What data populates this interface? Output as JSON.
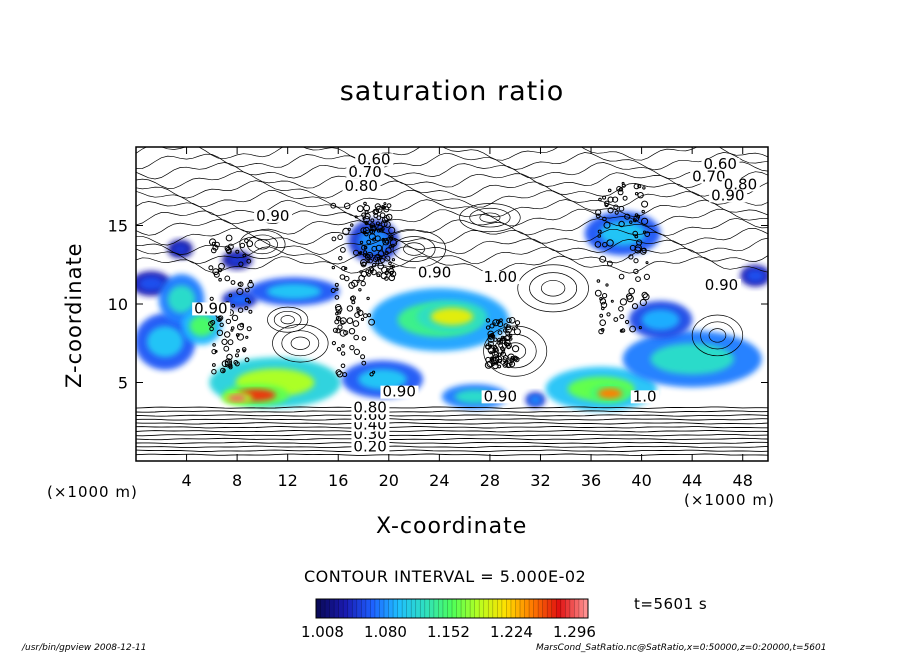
{
  "chart_data": {
    "type": "heatmap",
    "title": "saturation ratio",
    "xlabel": "X-coordinate",
    "ylabel": "Z-coordinate",
    "x_unit": "(×1000 m)",
    "y_unit": "(×1000 m)",
    "xlim": [
      0,
      50
    ],
    "ylim": [
      0,
      20
    ],
    "x_ticks": [
      4,
      8,
      12,
      16,
      20,
      24,
      28,
      32,
      36,
      40,
      44,
      48
    ],
    "y_ticks": [
      5,
      10,
      15
    ],
    "contour_interval": "CONTOUR INTERVAL = 5.000E-02",
    "contour_labels": [
      {
        "text": "0.60",
        "x": 17.5,
        "z": 18.9
      },
      {
        "text": "0.70",
        "x": 16.8,
        "z": 18.1
      },
      {
        "text": "0.80",
        "x": 16.5,
        "z": 17.2
      },
      {
        "text": "0.90",
        "x": 9.5,
        "z": 15.3
      },
      {
        "text": "0.90",
        "x": 22.3,
        "z": 11.7
      },
      {
        "text": "1.00",
        "x": 27.5,
        "z": 11.4
      },
      {
        "text": "0.90",
        "x": 4.6,
        "z": 9.4
      },
      {
        "text": "0.60",
        "x": 44.9,
        "z": 18.6
      },
      {
        "text": "0.70",
        "x": 44.0,
        "z": 17.8
      },
      {
        "text": "0.80",
        "x": 46.5,
        "z": 17.3
      },
      {
        "text": "0.90",
        "x": 45.5,
        "z": 16.6
      },
      {
        "text": "0.90",
        "x": 45.0,
        "z": 10.9
      },
      {
        "text": "0.90",
        "x": 19.5,
        "z": 4.1
      },
      {
        "text": "0.90",
        "x": 27.5,
        "z": 3.8
      },
      {
        "text": "1.0",
        "x": 39.3,
        "z": 3.8
      },
      {
        "text": "0.20",
        "x": 17.2,
        "z": 0.6
      },
      {
        "text": "0.30",
        "x": 17.2,
        "z": 1.4
      },
      {
        "text": "0.40",
        "x": 17.2,
        "z": 2.0
      },
      {
        "text": "0.60",
        "x": 17.2,
        "z": 2.6
      },
      {
        "text": "0.80",
        "x": 17.2,
        "z": 3.1
      }
    ],
    "colorbar": {
      "ticks": [
        "1.008",
        "1.080",
        "1.152",
        "1.224",
        "1.296"
      ],
      "range": [
        1.008,
        1.3
      ],
      "colormap": [
        "#0a0a5a",
        "#1a1ab0",
        "#1e5fff",
        "#1fbfff",
        "#2fe0c0",
        "#4cff5a",
        "#b8ff20",
        "#ffe000",
        "#ff7a00",
        "#e01010",
        "#ff9090"
      ]
    },
    "supersaturated_regions": [
      {
        "x": 1.2,
        "z": 11.3,
        "rx": 1.6,
        "rz": 0.8,
        "level": 1.06
      },
      {
        "x": 2.3,
        "z": 7.6,
        "rx": 2.4,
        "rz": 1.8,
        "level": 1.1
      },
      {
        "x": 3.6,
        "z": 10.3,
        "rx": 1.8,
        "rz": 1.6,
        "level": 1.12
      },
      {
        "x": 5.2,
        "z": 8.6,
        "rx": 1.6,
        "rz": 1.2,
        "level": 1.15
      },
      {
        "x": 3.5,
        "z": 13.5,
        "rx": 1.0,
        "rz": 0.6,
        "level": 1.05
      },
      {
        "x": 8.0,
        "z": 12.8,
        "rx": 1.2,
        "rz": 0.6,
        "level": 1.05
      },
      {
        "x": 8.2,
        "z": 10.3,
        "rx": 1.4,
        "rz": 0.6,
        "level": 1.07
      },
      {
        "x": 12.5,
        "z": 10.8,
        "rx": 3.6,
        "rz": 0.9,
        "level": 1.1
      },
      {
        "x": 11.0,
        "z": 5.0,
        "rx": 5.2,
        "rz": 1.6,
        "level": 1.18
      },
      {
        "x": 9.5,
        "z": 4.2,
        "rx": 2.6,
        "rz": 0.7,
        "level": 1.26
      },
      {
        "x": 8.0,
        "z": 4.0,
        "rx": 1.2,
        "rz": 0.4,
        "level": 1.29
      },
      {
        "x": 19.5,
        "z": 5.2,
        "rx": 3.2,
        "rz": 1.2,
        "level": 1.1
      },
      {
        "x": 24.0,
        "z": 9.0,
        "rx": 5.5,
        "rz": 2.0,
        "level": 1.14
      },
      {
        "x": 25.0,
        "z": 9.2,
        "rx": 2.8,
        "rz": 1.0,
        "level": 1.2
      },
      {
        "x": 18.8,
        "z": 14.0,
        "rx": 2.0,
        "rz": 1.4,
        "level": 1.08
      },
      {
        "x": 26.8,
        "z": 4.1,
        "rx": 2.6,
        "rz": 0.8,
        "level": 1.12
      },
      {
        "x": 31.6,
        "z": 3.9,
        "rx": 0.8,
        "rz": 0.5,
        "level": 1.08
      },
      {
        "x": 36.8,
        "z": 4.6,
        "rx": 4.4,
        "rz": 1.4,
        "level": 1.16
      },
      {
        "x": 37.5,
        "z": 4.3,
        "rx": 1.6,
        "rz": 0.6,
        "level": 1.24
      },
      {
        "x": 44.0,
        "z": 6.5,
        "rx": 5.5,
        "rz": 1.8,
        "level": 1.12
      },
      {
        "x": 41.5,
        "z": 9.0,
        "rx": 2.5,
        "rz": 1.2,
        "level": 1.09
      },
      {
        "x": 49.0,
        "z": 11.8,
        "rx": 1.2,
        "rz": 0.7,
        "level": 1.06
      },
      {
        "x": 38.5,
        "z": 14.5,
        "rx": 3.0,
        "rz": 1.4,
        "level": 1.1
      }
    ],
    "grid": false,
    "colorbar_position": "bottom"
  },
  "colorbar_labels": [
    "1.008",
    "1.080",
    "1.152",
    "1.224",
    "1.296"
  ],
  "time_label": "t=5601 s",
  "footer_left": "/usr/bin/gpview   2008-12-11",
  "footer_right": "MarsCond_SatRatio.nc@SatRatio,x=0:50000,z=0:20000,t=5601"
}
